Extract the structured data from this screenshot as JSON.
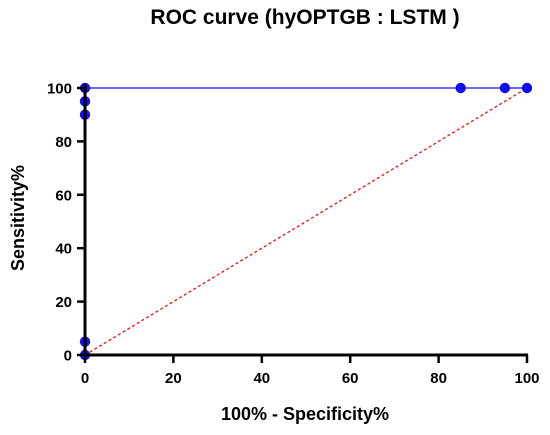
{
  "chart_data": {
    "type": "line",
    "title": "ROC curve (hyOPTGB : LSTM )",
    "xlabel": "100% - Specificity%",
    "ylabel": "Sensitivity%",
    "xlim": [
      0,
      100
    ],
    "ylim": [
      0,
      100
    ],
    "x_ticks": [
      "0",
      "20",
      "40",
      "60",
      "80",
      "100"
    ],
    "y_ticks": [
      "0",
      "20",
      "40",
      "60",
      "80",
      "100"
    ],
    "grid": false,
    "series": [
      {
        "color": "#1010ee",
        "x": [
          0,
          0,
          0,
          0,
          0,
          85,
          95,
          100
        ],
        "y": [
          0,
          5,
          90,
          95,
          100,
          100,
          100,
          100
        ]
      }
    ],
    "reference_line": {
      "color": "#ee1111",
      "style": "dotted",
      "x": [
        0,
        100
      ],
      "y": [
        0,
        100
      ]
    }
  }
}
